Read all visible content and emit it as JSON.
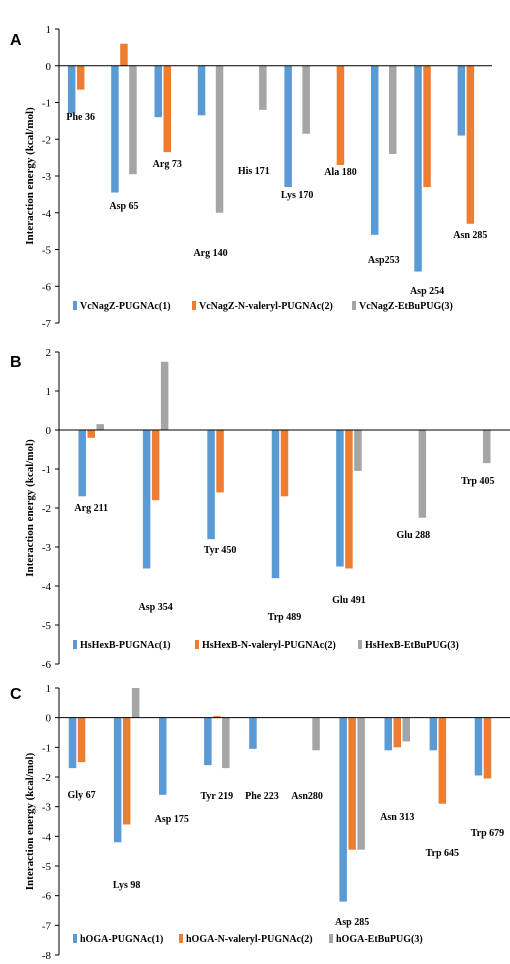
{
  "colors": {
    "s1": "#5B9BD5",
    "s2": "#ED7D31",
    "s3": "#A5A5A5"
  },
  "chart_data": [
    {
      "panel": "A",
      "type": "bar",
      "ylabel": "Interaction energy (kcal/mol)",
      "ylim": [
        -7,
        1
      ],
      "yticks": [
        1,
        0,
        -1,
        -2,
        -3,
        -4,
        -5,
        -6,
        -7
      ],
      "categories": [
        "Phe 36",
        "Asp 65",
        "Arg 73",
        "Arg 140",
        "His 171",
        "Lys 170",
        "Ala 180",
        "Asp253",
        "Asp 254",
        "Asn 285"
      ],
      "series": [
        {
          "name": "VcNagZ-PUGNAc(1)",
          "values": [
            -1.3,
            -3.45,
            -1.4,
            -1.35,
            0,
            -3.3,
            0,
            -4.6,
            -5.6,
            -1.9
          ]
        },
        {
          "name": "VcNagZ-N-valeryl-PUGNAc(2)",
          "values": [
            -0.65,
            0.6,
            -2.35,
            0,
            0,
            0,
            -2.7,
            0,
            -3.3,
            -4.3
          ]
        },
        {
          "name": "VcNagZ-EtBuPUG(3)",
          "values": [
            0,
            -2.95,
            0,
            -4.0,
            -1.2,
            -1.85,
            0,
            -2.4,
            0,
            0
          ]
        }
      ]
    },
    {
      "panel": "B",
      "type": "bar",
      "ylabel": "Interaction energy (kcal/mol)",
      "ylim": [
        -6,
        2
      ],
      "yticks": [
        2,
        1,
        0,
        -1,
        -2,
        -3,
        -4,
        -5,
        -6
      ],
      "categories": [
        "Arg 211",
        "Asp 354",
        "Tyr 450",
        "Trp 489",
        "Glu 491",
        "Glu 288",
        "Trp 405"
      ],
      "series": [
        {
          "name": "HsHexB-PUGNAc(1)",
          "values": [
            -1.7,
            -3.55,
            -2.8,
            -3.8,
            -3.5,
            0,
            0
          ]
        },
        {
          "name": "HsHexB-N-valeryl-PUGNAc(2)",
          "values": [
            -0.2,
            -1.8,
            -1.6,
            -1.7,
            -3.55,
            0,
            0
          ]
        },
        {
          "name": "HsHexB-EtBuPUG(3)",
          "values": [
            0.15,
            1.75,
            0,
            0,
            -1.05,
            -2.25,
            -0.85
          ]
        }
      ]
    },
    {
      "panel": "C",
      "type": "bar",
      "ylabel": "Interaction energy (kcal/mol)",
      "ylim": [
        -8,
        1
      ],
      "yticks": [
        1,
        0,
        -1,
        -2,
        -3,
        -4,
        -5,
        -6,
        -7,
        -8
      ],
      "categories": [
        "Gly 67",
        "Lys 98",
        "Asp 175",
        "Tyr 219",
        "Phe 223",
        "Asn280",
        "Asp 285",
        "Asn 313",
        "Trp 645",
        "Trp 679"
      ],
      "series": [
        {
          "name": "hOGA-PUGNAc(1)",
          "values": [
            -1.7,
            -4.2,
            -2.6,
            -1.6,
            -1.05,
            0,
            -6.2,
            -1.1,
            -1.1,
            -1.95
          ]
        },
        {
          "name": "hOGA-N-valeryl-PUGNAc(2)",
          "values": [
            -1.5,
            -3.6,
            0,
            0.05,
            0,
            0,
            -4.45,
            -1.0,
            -2.9,
            -2.05
          ]
        },
        {
          "name": "hOGA-EtBuPUG(3)",
          "values": [
            0,
            1.0,
            0,
            -1.7,
            0,
            -1.1,
            -4.45,
            -0.8,
            0,
            0
          ]
        }
      ]
    }
  ]
}
